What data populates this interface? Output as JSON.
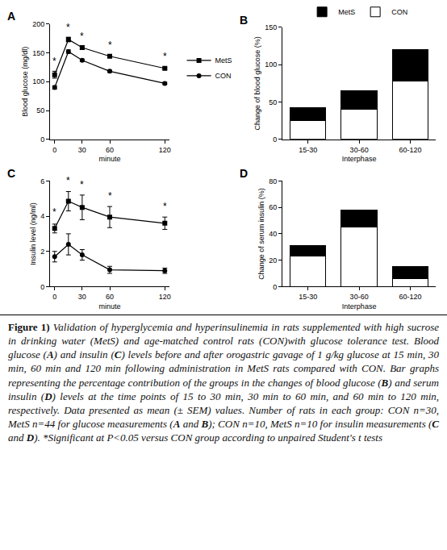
{
  "chart_data": [
    {
      "type": "line",
      "title": "A",
      "x": [
        0,
        15,
        30,
        60,
        120
      ],
      "x_label": "minute",
      "y_label": "Blood glucose (mg/dl)",
      "xlim": [
        -5,
        125
      ],
      "xticks": [
        0,
        30,
        60,
        120
      ],
      "ylim": [
        0,
        200
      ],
      "yticks": [
        0,
        50,
        100,
        150,
        200
      ],
      "grid": false,
      "legend": "right",
      "series": [
        {
          "name": "CON",
          "color": "#000000",
          "marker": "circle",
          "values": [
            90,
            152,
            137,
            118,
            97
          ],
          "error": [
            3,
            3,
            2,
            2,
            2
          ]
        },
        {
          "name": "MetS",
          "color": "#000000",
          "marker": "square",
          "values": [
            112,
            173,
            159,
            144,
            123
          ],
          "error": [
            6,
            4,
            3,
            2,
            2
          ]
        }
      ],
      "annotations": [
        {
          "x": 0,
          "y": 122,
          "text": "*"
        },
        {
          "x": 15,
          "y": 181,
          "text": "*"
        },
        {
          "x": 30,
          "y": 166,
          "text": "*"
        },
        {
          "x": 60,
          "y": 151,
          "text": "*"
        },
        {
          "x": 120,
          "y": 131,
          "text": "*"
        }
      ]
    },
    {
      "type": "bar",
      "title": "B",
      "categories": [
        "15-30",
        "30-60",
        "60-120"
      ],
      "x_label": "Interphase",
      "y_label": "Change of blood glucose (%)",
      "ylim": [
        0,
        150
      ],
      "yticks": [
        0,
        50,
        100,
        150
      ],
      "grid": false,
      "stacked": true,
      "legend": "top",
      "series": [
        {
          "name": "CON",
          "color": "#ffffff",
          "values": [
            25,
            40,
            78
          ]
        },
        {
          "name": "MetS",
          "color": "#000000",
          "values": [
            17,
            25,
            42
          ]
        }
      ]
    },
    {
      "type": "line",
      "title": "C",
      "x": [
        0,
        15,
        30,
        60,
        120
      ],
      "x_label": "minute",
      "y_label": "Insulin level (ng/ml)",
      "xlim": [
        -5,
        125
      ],
      "xticks": [
        0,
        30,
        60,
        120
      ],
      "ylim": [
        0,
        6
      ],
      "yticks": [
        0,
        2,
        4,
        6
      ],
      "grid": false,
      "legend": false,
      "series": [
        {
          "name": "CON",
          "color": "#000000",
          "marker": "circle",
          "values": [
            1.7,
            2.4,
            1.8,
            0.95,
            0.9
          ],
          "error": [
            0.3,
            0.6,
            0.3,
            0.2,
            0.15
          ]
        },
        {
          "name": "MetS",
          "color": "#000000",
          "marker": "square",
          "values": [
            3.3,
            4.85,
            4.5,
            3.95,
            3.6
          ],
          "error": [
            0.25,
            0.55,
            0.7,
            0.6,
            0.35
          ]
        }
      ],
      "annotations": [
        {
          "x": 0,
          "y": 3.8,
          "text": "*"
        },
        {
          "x": 15,
          "y": 5.6,
          "text": "*"
        },
        {
          "x": 30,
          "y": 5.4,
          "text": "*"
        },
        {
          "x": 60,
          "y": 4.75,
          "text": "*"
        },
        {
          "x": 120,
          "y": 4.15,
          "text": "*"
        }
      ]
    },
    {
      "type": "bar",
      "title": "D",
      "categories": [
        "15-30",
        "30-60",
        "60-120"
      ],
      "x_label": "Interphase",
      "y_label": "Change of serum insulin (%)",
      "ylim": [
        0,
        80
      ],
      "yticks": [
        0,
        20,
        40,
        60,
        80
      ],
      "grid": false,
      "stacked": true,
      "legend": false,
      "series": [
        {
          "name": "CON",
          "color": "#ffffff",
          "values": [
            23,
            45,
            6
          ]
        },
        {
          "name": "MetS",
          "color": "#000000",
          "values": [
            8,
            13,
            9
          ]
        }
      ]
    }
  ],
  "caption": {
    "label": "Figure 1)",
    "text": "Validation of hyperglycemia and hyperinsulinemia in rats supplemented with high sucrose in drinking water (MetS) and age-matched control rats (CON)with glucose tolerance test. Blood glucose (A) and insulin (C) levels before and after orogastric gavage of 1 g/kg glucose at 15 min, 30 min, 60 min and 120 min following administration in MetS rats compared with CON. Bar graphs representing the percentage contribution of the groups in the changes of blood glucose (B) and serum insulin (D) levels at the time points of 15 to 30 min, 30 min to 60 min, and 60 min to 120 min, respectively. Data presented as mean (± SEM) values. Number of rats in each group: CON n=30, MetS n=44 for glucose measurements (A and B); CON n=10, MetS n=10 for insulin measurements (C and D). *Significant at P<0.05 versus CON group according to unpaired Student's t tests"
  }
}
